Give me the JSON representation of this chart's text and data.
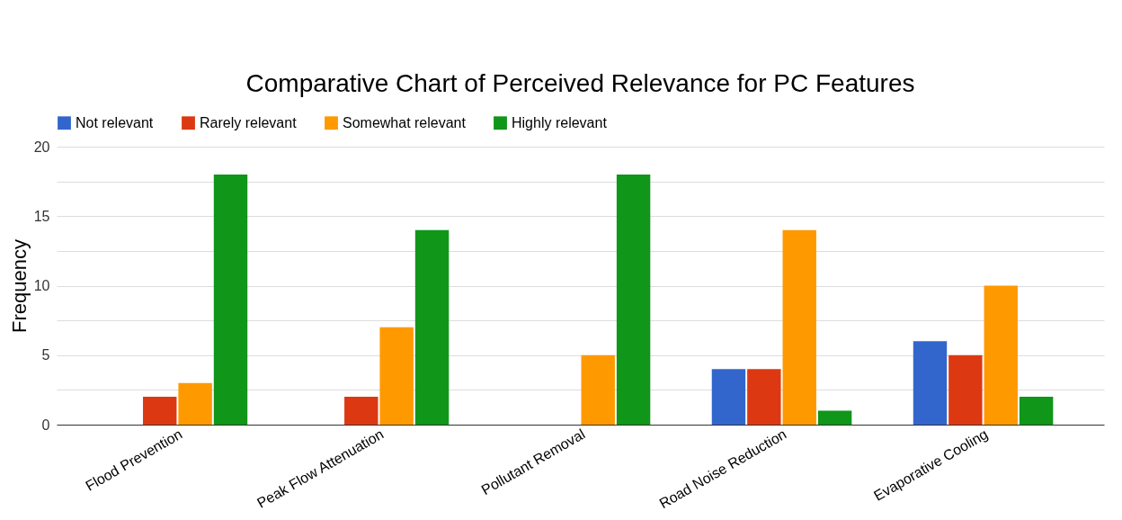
{
  "chart_data": {
    "type": "bar",
    "title": "Comparative Chart of Perceived Relevance for PC Features",
    "ylabel": "Frequency",
    "categories": [
      "Flood Prevention",
      "Peak Flow Attenuation",
      "Pollutant Removal",
      "Road Noise Reduction",
      "Evaporative Cooling"
    ],
    "series": [
      {
        "name": "Not relevant",
        "color": "#3366cc",
        "values": [
          0,
          0,
          0,
          4,
          6
        ]
      },
      {
        "name": "Rarely relevant",
        "color": "#dc3912",
        "values": [
          2,
          2,
          0,
          4,
          5
        ]
      },
      {
        "name": "Somewhat relevant",
        "color": "#ff9900",
        "values": [
          3,
          7,
          5,
          14,
          10
        ]
      },
      {
        "name": "Highly relevant",
        "color": "#109618",
        "values": [
          18,
          14,
          18,
          1,
          2
        ]
      }
    ],
    "ylim": [
      0,
      20
    ],
    "yticks": [
      0,
      {
        "value": 2.5,
        "label": null
      },
      5,
      {
        "value": 7.5,
        "label": null
      },
      10,
      {
        "value": 12.5,
        "label": null
      },
      15,
      {
        "value": 17.5,
        "label": null
      },
      20
    ],
    "grid": "y",
    "legend": "top"
  }
}
